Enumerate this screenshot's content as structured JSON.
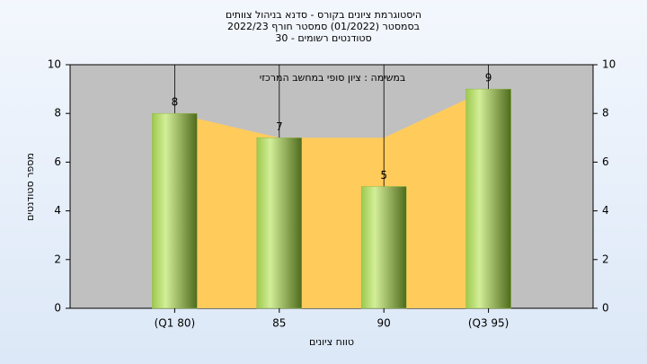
{
  "chart_data": {
    "type": "bar",
    "title": [
      "היסטוגרמת ציונים בקורס - סדנא בניהול צוותים",
      "בסמסטר  (01/2022)  סמסטר חורף 2022/23",
      "סטודנטים רשומים - 30"
    ],
    "annotation": "במשימה : ציון סופי במחשב המרכזי",
    "x_label": "טווח ציונים",
    "y_label": "מספר סטודנטים",
    "categories": [
      "(Q1 80)",
      "85",
      "90",
      "(Q3 95)"
    ],
    "series": [
      {
        "type": "area",
        "color": "#ffcc5c",
        "values": [
          8,
          7,
          7,
          9
        ]
      },
      {
        "type": "bar",
        "color": "#8fb84a",
        "values": [
          8,
          7,
          5,
          9
        ]
      }
    ],
    "ylim": [
      0,
      10
    ],
    "yticks": [
      0,
      2,
      4,
      6,
      8,
      10
    ],
    "y2lim": [
      0,
      10
    ],
    "y2ticks": [
      0,
      2,
      4,
      6,
      8,
      10
    ],
    "grid": true
  }
}
